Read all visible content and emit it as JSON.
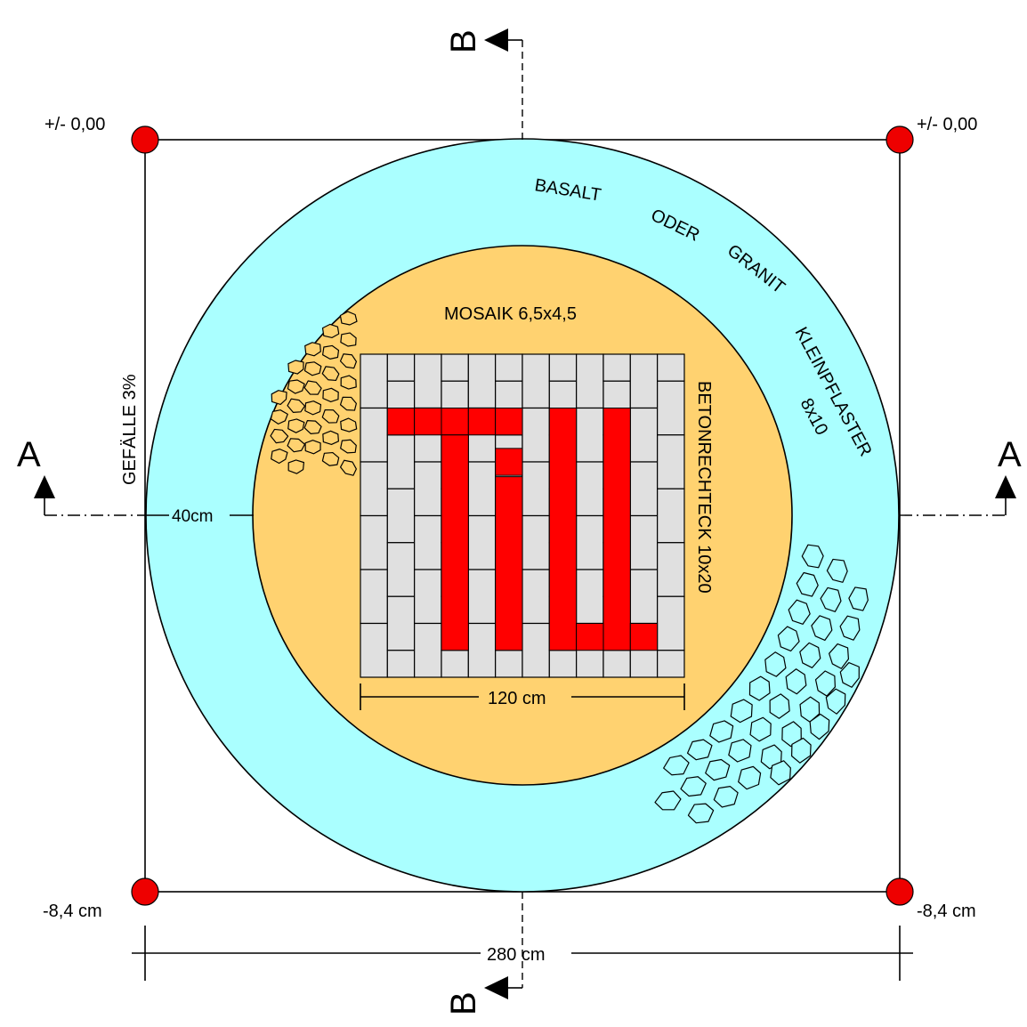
{
  "labels": {
    "top_left_elevation": "+/- 0,00",
    "top_right_elevation": "+/- 0,00",
    "bottom_left_elevation": "-8,4 cm",
    "bottom_right_elevation": "-8,4 cm",
    "slope": "GEFÄLLE  3%",
    "ring_width": "40cm",
    "inner_width": "120 cm",
    "total_width": "280 cm",
    "mosaic": "MOSAIK 6,5x4,5",
    "concrete": "BETONRECHTECK 10x20",
    "outer_ring_words": [
      "BASALT",
      "ODER",
      "GRANIT",
      "KLEINPFLASTER"
    ],
    "outer_ring_size": "8x10",
    "section_a_left": "A",
    "section_a_right": "A",
    "section_b_top": "B",
    "section_b_bottom": "B"
  },
  "colors": {
    "outer_ring": "#aaffff",
    "inner_circle": "#ffd270",
    "grid_tile": "#e0e0e0",
    "logo": "#ff0000",
    "marker": "#ee0000"
  },
  "logo_grid": {
    "columns": 12,
    "rows": 12,
    "logo_text": "TU"
  }
}
